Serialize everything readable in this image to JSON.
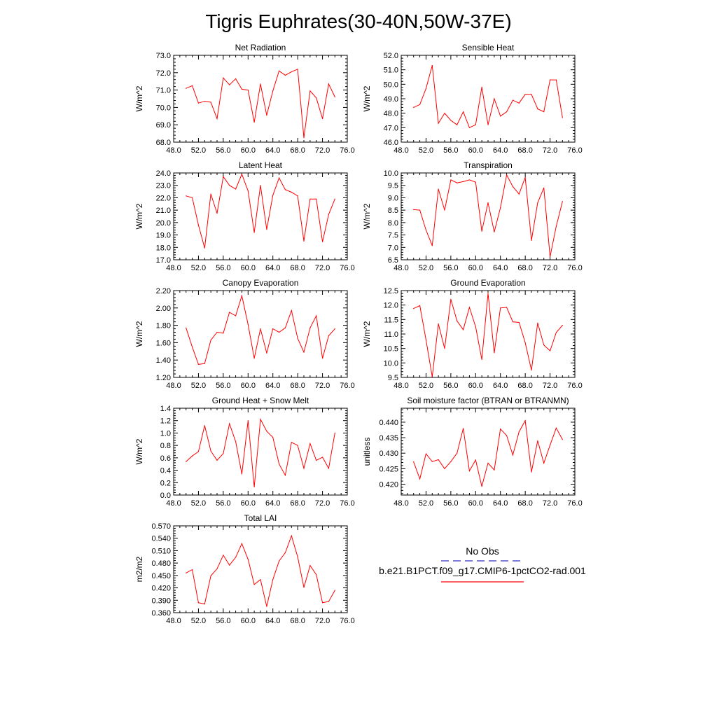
{
  "figure": {
    "title": "Tigris Euphrates(30-40N,50W-37E)"
  },
  "legend": {
    "obs_label": "No Obs",
    "obs_color": "#3030c0",
    "model_label": "b.e21.B1PCT.f09_g17.CMIP6-1pctCO2-rad.001",
    "model_color": "#ff0000"
  },
  "chart_data": [
    {
      "type": "line",
      "title": "Net Radiation",
      "ylabel": "W/m^2",
      "xlim": [
        48,
        76
      ],
      "ylim": [
        68,
        73
      ],
      "xticks": [
        "48.0",
        "52.0",
        "56.0",
        "60.0",
        "64.0",
        "68.0",
        "72.0",
        "76.0"
      ],
      "yticks": [
        "68.0",
        "69.0",
        "70.0",
        "71.0",
        "72.0",
        "73.0"
      ],
      "x": [
        50,
        51,
        52,
        53,
        54,
        55,
        56,
        57,
        58,
        59,
        60,
        61,
        62,
        63,
        64,
        65,
        66,
        67,
        68,
        69,
        70,
        71,
        72,
        73,
        74
      ],
      "series": [
        {
          "color": "#ff0000",
          "values": [
            71.1,
            71.25,
            70.25,
            70.35,
            70.3,
            69.35,
            71.7,
            71.3,
            71.65,
            71.05,
            71.0,
            69.15,
            71.35,
            69.55,
            70.95,
            72.1,
            71.85,
            72.05,
            72.2,
            68.25,
            70.95,
            70.55,
            69.35,
            71.35,
            70.6
          ]
        }
      ]
    },
    {
      "type": "line",
      "title": "Sensible Heat",
      "ylabel": "W/m^2",
      "xlim": [
        48,
        76
      ],
      "ylim": [
        46,
        52
      ],
      "xticks": [
        "48.0",
        "52.0",
        "56.0",
        "60.0",
        "64.0",
        "68.0",
        "72.0",
        "76.0"
      ],
      "yticks": [
        "46.0",
        "47.0",
        "48.0",
        "49.0",
        "50.0",
        "51.0",
        "52.0"
      ],
      "x": [
        50,
        51,
        52,
        53,
        54,
        55,
        56,
        57,
        58,
        59,
        60,
        61,
        62,
        63,
        64,
        65,
        66,
        67,
        68,
        69,
        70,
        71,
        72,
        73,
        74
      ],
      "series": [
        {
          "color": "#ff0000",
          "values": [
            48.4,
            48.6,
            49.7,
            51.3,
            47.3,
            48.0,
            47.5,
            47.2,
            48.1,
            47.0,
            47.2,
            49.8,
            47.2,
            49.0,
            47.8,
            48.1,
            48.9,
            48.7,
            49.3,
            49.3,
            48.3,
            48.1,
            50.3,
            50.3,
            47.7
          ]
        }
      ]
    },
    {
      "type": "line",
      "title": "Latent Heat",
      "ylabel": "W/m^2",
      "xlim": [
        48,
        76
      ],
      "ylim": [
        17,
        24
      ],
      "xticks": [
        "48.0",
        "52.0",
        "56.0",
        "60.0",
        "64.0",
        "68.0",
        "72.0",
        "76.0"
      ],
      "yticks": [
        "17.0",
        "18.0",
        "19.0",
        "20.0",
        "21.0",
        "22.0",
        "23.0",
        "24.0"
      ],
      "x": [
        50,
        51,
        52,
        53,
        54,
        55,
        56,
        57,
        58,
        59,
        60,
        61,
        62,
        63,
        64,
        65,
        66,
        67,
        68,
        69,
        70,
        71,
        72,
        73,
        74
      ],
      "series": [
        {
          "color": "#ff0000",
          "values": [
            22.15,
            22.0,
            19.8,
            17.95,
            22.3,
            20.75,
            23.7,
            23.0,
            22.7,
            23.9,
            22.55,
            19.2,
            23.0,
            19.45,
            22.2,
            23.6,
            22.65,
            22.45,
            22.15,
            18.5,
            21.9,
            21.9,
            18.45,
            20.65,
            21.9
          ]
        }
      ]
    },
    {
      "type": "line",
      "title": "Transpiration",
      "ylabel": "W/m^2",
      "xlim": [
        48,
        76
      ],
      "ylim": [
        6.5,
        10
      ],
      "xticks": [
        "48.0",
        "52.0",
        "56.0",
        "60.0",
        "64.0",
        "68.0",
        "72.0",
        "76.0"
      ],
      "yticks": [
        "6.5",
        "7.0",
        "7.5",
        "8.0",
        "8.5",
        "9.0",
        "9.5",
        "10.0"
      ],
      "x": [
        50,
        51,
        52,
        53,
        54,
        55,
        56,
        57,
        58,
        59,
        60,
        61,
        62,
        63,
        64,
        65,
        66,
        67,
        68,
        69,
        70,
        71,
        72,
        73,
        74
      ],
      "series": [
        {
          "color": "#ff0000",
          "values": [
            8.52,
            8.5,
            7.7,
            7.07,
            9.35,
            8.5,
            9.72,
            9.6,
            9.65,
            9.72,
            9.63,
            7.65,
            8.8,
            7.62,
            8.6,
            9.92,
            9.45,
            9.15,
            9.82,
            7.28,
            8.8,
            9.4,
            6.62,
            7.85,
            8.85
          ]
        }
      ]
    },
    {
      "type": "line",
      "title": "Canopy Evaporation",
      "ylabel": "W/m^2",
      "xlim": [
        48,
        76
      ],
      "ylim": [
        1.2,
        2.2
      ],
      "xticks": [
        "48.0",
        "52.0",
        "56.0",
        "60.0",
        "64.0",
        "68.0",
        "72.0",
        "76.0"
      ],
      "yticks": [
        "1.20",
        "1.40",
        "1.60",
        "1.80",
        "2.00",
        "2.20"
      ],
      "x": [
        50,
        51,
        52,
        53,
        54,
        55,
        56,
        57,
        58,
        59,
        60,
        61,
        62,
        63,
        64,
        65,
        66,
        67,
        68,
        69,
        70,
        71,
        72,
        73,
        74
      ],
      "series": [
        {
          "color": "#ff0000",
          "values": [
            1.77,
            1.55,
            1.35,
            1.36,
            1.63,
            1.72,
            1.71,
            1.95,
            1.91,
            2.14,
            1.81,
            1.42,
            1.76,
            1.48,
            1.76,
            1.72,
            1.77,
            1.97,
            1.65,
            1.49,
            1.77,
            1.91,
            1.42,
            1.68,
            1.76
          ]
        }
      ]
    },
    {
      "type": "line",
      "title": "Ground Evaporation",
      "ylabel": "W/m^2",
      "xlim": [
        48,
        76
      ],
      "ylim": [
        9.5,
        12.5
      ],
      "xticks": [
        "48.0",
        "52.0",
        "56.0",
        "60.0",
        "64.0",
        "68.0",
        "72.0",
        "76.0"
      ],
      "yticks": [
        "9.5",
        "10.0",
        "10.5",
        "11.0",
        "11.5",
        "12.0",
        "12.5"
      ],
      "x": [
        50,
        51,
        52,
        53,
        54,
        55,
        56,
        57,
        58,
        59,
        60,
        61,
        62,
        63,
        64,
        65,
        66,
        67,
        68,
        69,
        70,
        71,
        72,
        73,
        74
      ],
      "series": [
        {
          "color": "#ff0000",
          "values": [
            11.88,
            11.98,
            10.8,
            9.52,
            11.35,
            10.5,
            12.2,
            11.45,
            11.15,
            11.92,
            11.25,
            10.12,
            12.4,
            10.35,
            11.9,
            11.92,
            11.42,
            11.4,
            10.7,
            9.75,
            11.38,
            10.62,
            10.42,
            11.05,
            11.3
          ]
        }
      ]
    },
    {
      "type": "line",
      "title": "Ground Heat + Snow Melt",
      "ylabel": "W/m^2",
      "xlim": [
        48,
        76
      ],
      "ylim": [
        0,
        1.4
      ],
      "xticks": [
        "48.0",
        "52.0",
        "56.0",
        "60.0",
        "64.0",
        "68.0",
        "72.0",
        "76.0"
      ],
      "yticks": [
        "0.0",
        "0.2",
        "0.4",
        "0.6",
        "0.8",
        "1.0",
        "1.2",
        "1.4"
      ],
      "x": [
        50,
        51,
        52,
        53,
        54,
        55,
        56,
        57,
        58,
        59,
        60,
        61,
        62,
        63,
        64,
        65,
        66,
        67,
        68,
        69,
        70,
        71,
        72,
        73,
        74
      ],
      "series": [
        {
          "color": "#ff0000",
          "values": [
            0.54,
            0.63,
            0.7,
            1.12,
            0.71,
            0.56,
            0.67,
            1.15,
            0.86,
            0.34,
            1.2,
            0.13,
            1.22,
            1.03,
            0.93,
            0.5,
            0.32,
            0.85,
            0.8,
            0.43,
            0.83,
            0.56,
            0.61,
            0.43,
            1.0
          ]
        }
      ]
    },
    {
      "type": "line",
      "title": "Soil moisture factor (BTRAN or BTRANMN)",
      "ylabel": "unitless",
      "xlim": [
        48,
        76
      ],
      "ylim": [
        0.4165,
        0.4445
      ],
      "xticks": [
        "48.0",
        "52.0",
        "56.0",
        "60.0",
        "64.0",
        "68.0",
        "72.0",
        "76.0"
      ],
      "yticks": [
        "0.420",
        "0.425",
        "0.430",
        "0.435",
        "0.440"
      ],
      "x": [
        50,
        51,
        52,
        53,
        54,
        55,
        56,
        57,
        58,
        59,
        60,
        61,
        62,
        63,
        64,
        65,
        66,
        67,
        68,
        69,
        70,
        71,
        72,
        73,
        74
      ],
      "series": [
        {
          "color": "#ff0000",
          "values": [
            0.4272,
            0.4217,
            0.4298,
            0.4273,
            0.4279,
            0.425,
            0.4273,
            0.43,
            0.438,
            0.4243,
            0.4278,
            0.4193,
            0.4268,
            0.4246,
            0.4378,
            0.4357,
            0.4294,
            0.4369,
            0.4405,
            0.4239,
            0.434,
            0.4268,
            0.4326,
            0.4381,
            0.4344
          ]
        }
      ]
    },
    {
      "type": "line",
      "title": "Total LAI",
      "ylabel": "m2/m2",
      "xlim": [
        48,
        76
      ],
      "ylim": [
        0.36,
        0.57
      ],
      "xticks": [
        "48.0",
        "52.0",
        "56.0",
        "60.0",
        "64.0",
        "68.0",
        "72.0",
        "76.0"
      ],
      "yticks": [
        "0.360",
        "0.390",
        "0.420",
        "0.450",
        "0.480",
        "0.510",
        "0.540",
        "0.570"
      ],
      "x": [
        50,
        51,
        52,
        53,
        54,
        55,
        56,
        57,
        58,
        59,
        60,
        61,
        62,
        63,
        64,
        65,
        66,
        67,
        68,
        69,
        70,
        71,
        72,
        73,
        74
      ],
      "series": [
        {
          "color": "#ff0000",
          "values": [
            0.456,
            0.464,
            0.384,
            0.381,
            0.449,
            0.466,
            0.499,
            0.475,
            0.494,
            0.527,
            0.489,
            0.428,
            0.44,
            0.375,
            0.44,
            0.485,
            0.505,
            0.546,
            0.495,
            0.421,
            0.474,
            0.452,
            0.384,
            0.387,
            0.414
          ]
        }
      ]
    }
  ]
}
